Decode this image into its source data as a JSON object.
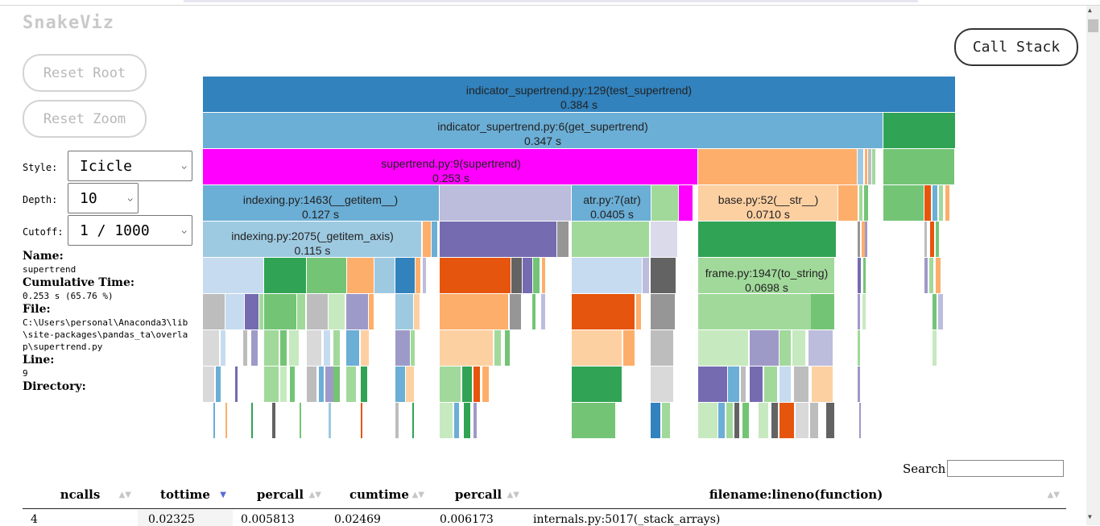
{
  "app": {
    "title": "SnakeViz"
  },
  "buttons": {
    "reset_root": "Reset Root",
    "reset_zoom": "Reset Zoom",
    "call_stack": "Call Stack"
  },
  "controls": {
    "style": {
      "label": "Style:",
      "value": "Icicle"
    },
    "depth": {
      "label": "Depth:",
      "value": "10"
    },
    "cutoff": {
      "label": "Cutoff:",
      "value": "1 / 1000"
    }
  },
  "info": {
    "name_label": "Name:",
    "name": "supertrend",
    "cumtime_label": "Cumulative Time:",
    "cumtime": "0.253 s (65.76 %)",
    "file_label": "File:",
    "file": "C:\\Users\\personal\\Anaconda3\\lib\\site-packages\\pandas_ta\\overlap\\supertrend.py",
    "line_label": "Line:",
    "line": "9",
    "directory_label": "Directory:",
    "directory": ""
  },
  "icicle": {
    "labels": [
      {
        "name": "indicator_supertrend.py:129(test_supertrend)",
        "time": "0.384 s"
      },
      {
        "name": "indicator_supertrend.py:6(get_supertrend)",
        "time": "0.347 s"
      },
      {
        "name": "supertrend.py:9(supertrend)",
        "time": "0.253 s"
      },
      {
        "name": "indexing.py:1463(__getitem__)",
        "time": "0.127 s"
      },
      {
        "name": "atr.py:7(atr)",
        "time": "0.0405 s"
      },
      {
        "name": "base.py:52(__str__)",
        "time": "0.0710 s"
      },
      {
        "name": "indexing.py:2075(_getitem_axis)",
        "time": "0.115 s"
      },
      {
        "name": "frame.py:1947(to_string)",
        "time": "0.0698 s"
      }
    ]
  },
  "search": {
    "label": "Search:",
    "value": ""
  },
  "table": {
    "headers": [
      "ncalls",
      "tottime",
      "percall",
      "cumtime",
      "percall",
      "filename:lineno(function)"
    ],
    "sorted_column": "tottime",
    "rows": [
      [
        "4",
        "0.02325",
        "0.005813",
        "0.02469",
        "0.006173",
        "internals.py:5017(_stack_arrays)"
      ]
    ]
  },
  "colors": {
    "selected": "#ff00ff",
    "blue_dark": "#3182bd",
    "blue_mid": "#6baed6",
    "blue_light": "#9ecae1",
    "orange_light": "#fdae6b",
    "orange_pale": "#fdd0a2",
    "orange_dark": "#e6550d",
    "green_dark": "#31a354",
    "green_mid": "#74c476",
    "green_light": "#a1d99b",
    "green_pale": "#c7e9c0",
    "purple_dark": "#756bb1",
    "purple_mid": "#9e9ac8",
    "purple_light": "#bcbddc",
    "purple_pale": "#dadaeb",
    "grey_dark": "#636363",
    "grey_mid": "#969696",
    "grey_light": "#bdbdbd",
    "grey_pale": "#d9d9d9"
  }
}
